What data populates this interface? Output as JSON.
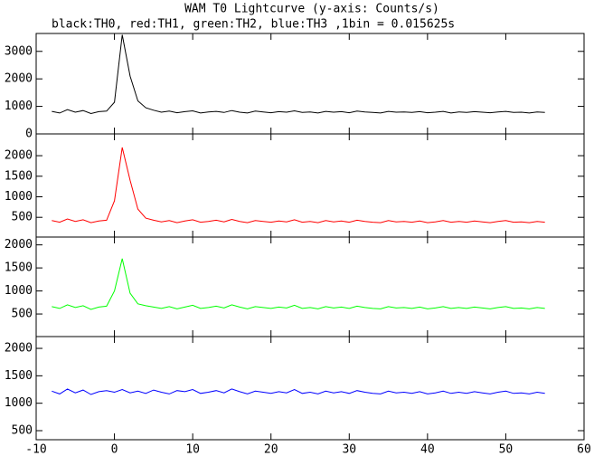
{
  "chart_data": {
    "type": "line",
    "title": "WAM T0 Lightcurve (y-axis: Counts/s)",
    "subtitle": "black:TH0, red:TH1, green:TH2, blue:TH3 ,1bin = 0.015625s",
    "xlim": [
      -10,
      60
    ],
    "xticks": [
      -10,
      0,
      10,
      20,
      30,
      40,
      50,
      60
    ],
    "x": [
      -8,
      -7,
      -6,
      -5,
      -4,
      -3,
      -2,
      -1,
      0,
      1,
      2,
      3,
      4,
      5,
      6,
      7,
      8,
      9,
      10,
      11,
      12,
      13,
      14,
      15,
      16,
      17,
      18,
      19,
      20,
      21,
      22,
      23,
      24,
      25,
      26,
      27,
      28,
      29,
      30,
      31,
      32,
      33,
      34,
      35,
      36,
      37,
      38,
      39,
      40,
      41,
      42,
      43,
      44,
      45,
      46,
      47,
      48,
      49,
      50,
      51,
      52,
      53,
      54,
      55
    ],
    "panels": [
      {
        "color": "#000000",
        "ylim": [
          0,
          3650
        ],
        "yticks": [
          0,
          1000,
          2000,
          3000
        ],
        "values": [
          820,
          760,
          880,
          790,
          850,
          740,
          810,
          830,
          1150,
          3600,
          2100,
          1200,
          950,
          860,
          790,
          830,
          770,
          810,
          840,
          760,
          800,
          820,
          780,
          850,
          790,
          760,
          830,
          800,
          770,
          810,
          790,
          840,
          780,
          800,
          760,
          820,
          790,
          810,
          770,
          830,
          800,
          780,
          760,
          820,
          790,
          800,
          780,
          810,
          770,
          790,
          820,
          760,
          800,
          780,
          810,
          790,
          770,
          800,
          820,
          780,
          790,
          760,
          800,
          780
        ]
      },
      {
        "color": "#ff0000",
        "ylim": [
          20,
          2530
        ],
        "yticks": [
          500,
          1000,
          1500,
          2000
        ],
        "values": [
          420,
          380,
          460,
          400,
          440,
          370,
          410,
          430,
          900,
          2200,
          1400,
          700,
          480,
          430,
          390,
          420,
          370,
          410,
          440,
          380,
          400,
          430,
          390,
          450,
          400,
          370,
          420,
          400,
          380,
          410,
          390,
          440,
          380,
          400,
          370,
          420,
          390,
          410,
          380,
          430,
          400,
          380,
          370,
          420,
          390,
          400,
          380,
          410,
          370,
          390,
          420,
          380,
          400,
          380,
          410,
          390,
          370,
          400,
          420,
          380,
          390,
          370,
          400,
          380
        ]
      },
      {
        "color": "#00ff00",
        "ylim": [
          10,
          2170
        ],
        "yticks": [
          500,
          1000,
          1500,
          2000
        ],
        "values": [
          660,
          620,
          700,
          640,
          680,
          600,
          650,
          670,
          1000,
          1700,
          950,
          720,
          680,
          650,
          620,
          660,
          610,
          650,
          690,
          620,
          640,
          670,
          630,
          700,
          650,
          610,
          660,
          640,
          620,
          650,
          630,
          690,
          620,
          640,
          610,
          660,
          630,
          650,
          620,
          670,
          640,
          620,
          610,
          660,
          630,
          640,
          620,
          650,
          610,
          630,
          660,
          620,
          640,
          620,
          650,
          630,
          610,
          640,
          660,
          620,
          630,
          610,
          640,
          620
        ]
      },
      {
        "color": "#0000ff",
        "ylim": [
          335,
          2215
        ],
        "yticks": [
          500,
          1000,
          1500,
          2000
        ],
        "values": [
          1220,
          1170,
          1260,
          1190,
          1240,
          1160,
          1210,
          1230,
          1200,
          1250,
          1190,
          1220,
          1180,
          1240,
          1200,
          1170,
          1230,
          1210,
          1250,
          1180,
          1200,
          1230,
          1190,
          1260,
          1210,
          1170,
          1220,
          1200,
          1180,
          1210,
          1190,
          1250,
          1180,
          1200,
          1170,
          1220,
          1190,
          1210,
          1180,
          1230,
          1200,
          1180,
          1170,
          1220,
          1190,
          1200,
          1180,
          1210,
          1170,
          1190,
          1220,
          1180,
          1200,
          1180,
          1210,
          1190,
          1170,
          1200,
          1220,
          1180,
          1190,
          1170,
          1200,
          1180
        ]
      }
    ]
  }
}
